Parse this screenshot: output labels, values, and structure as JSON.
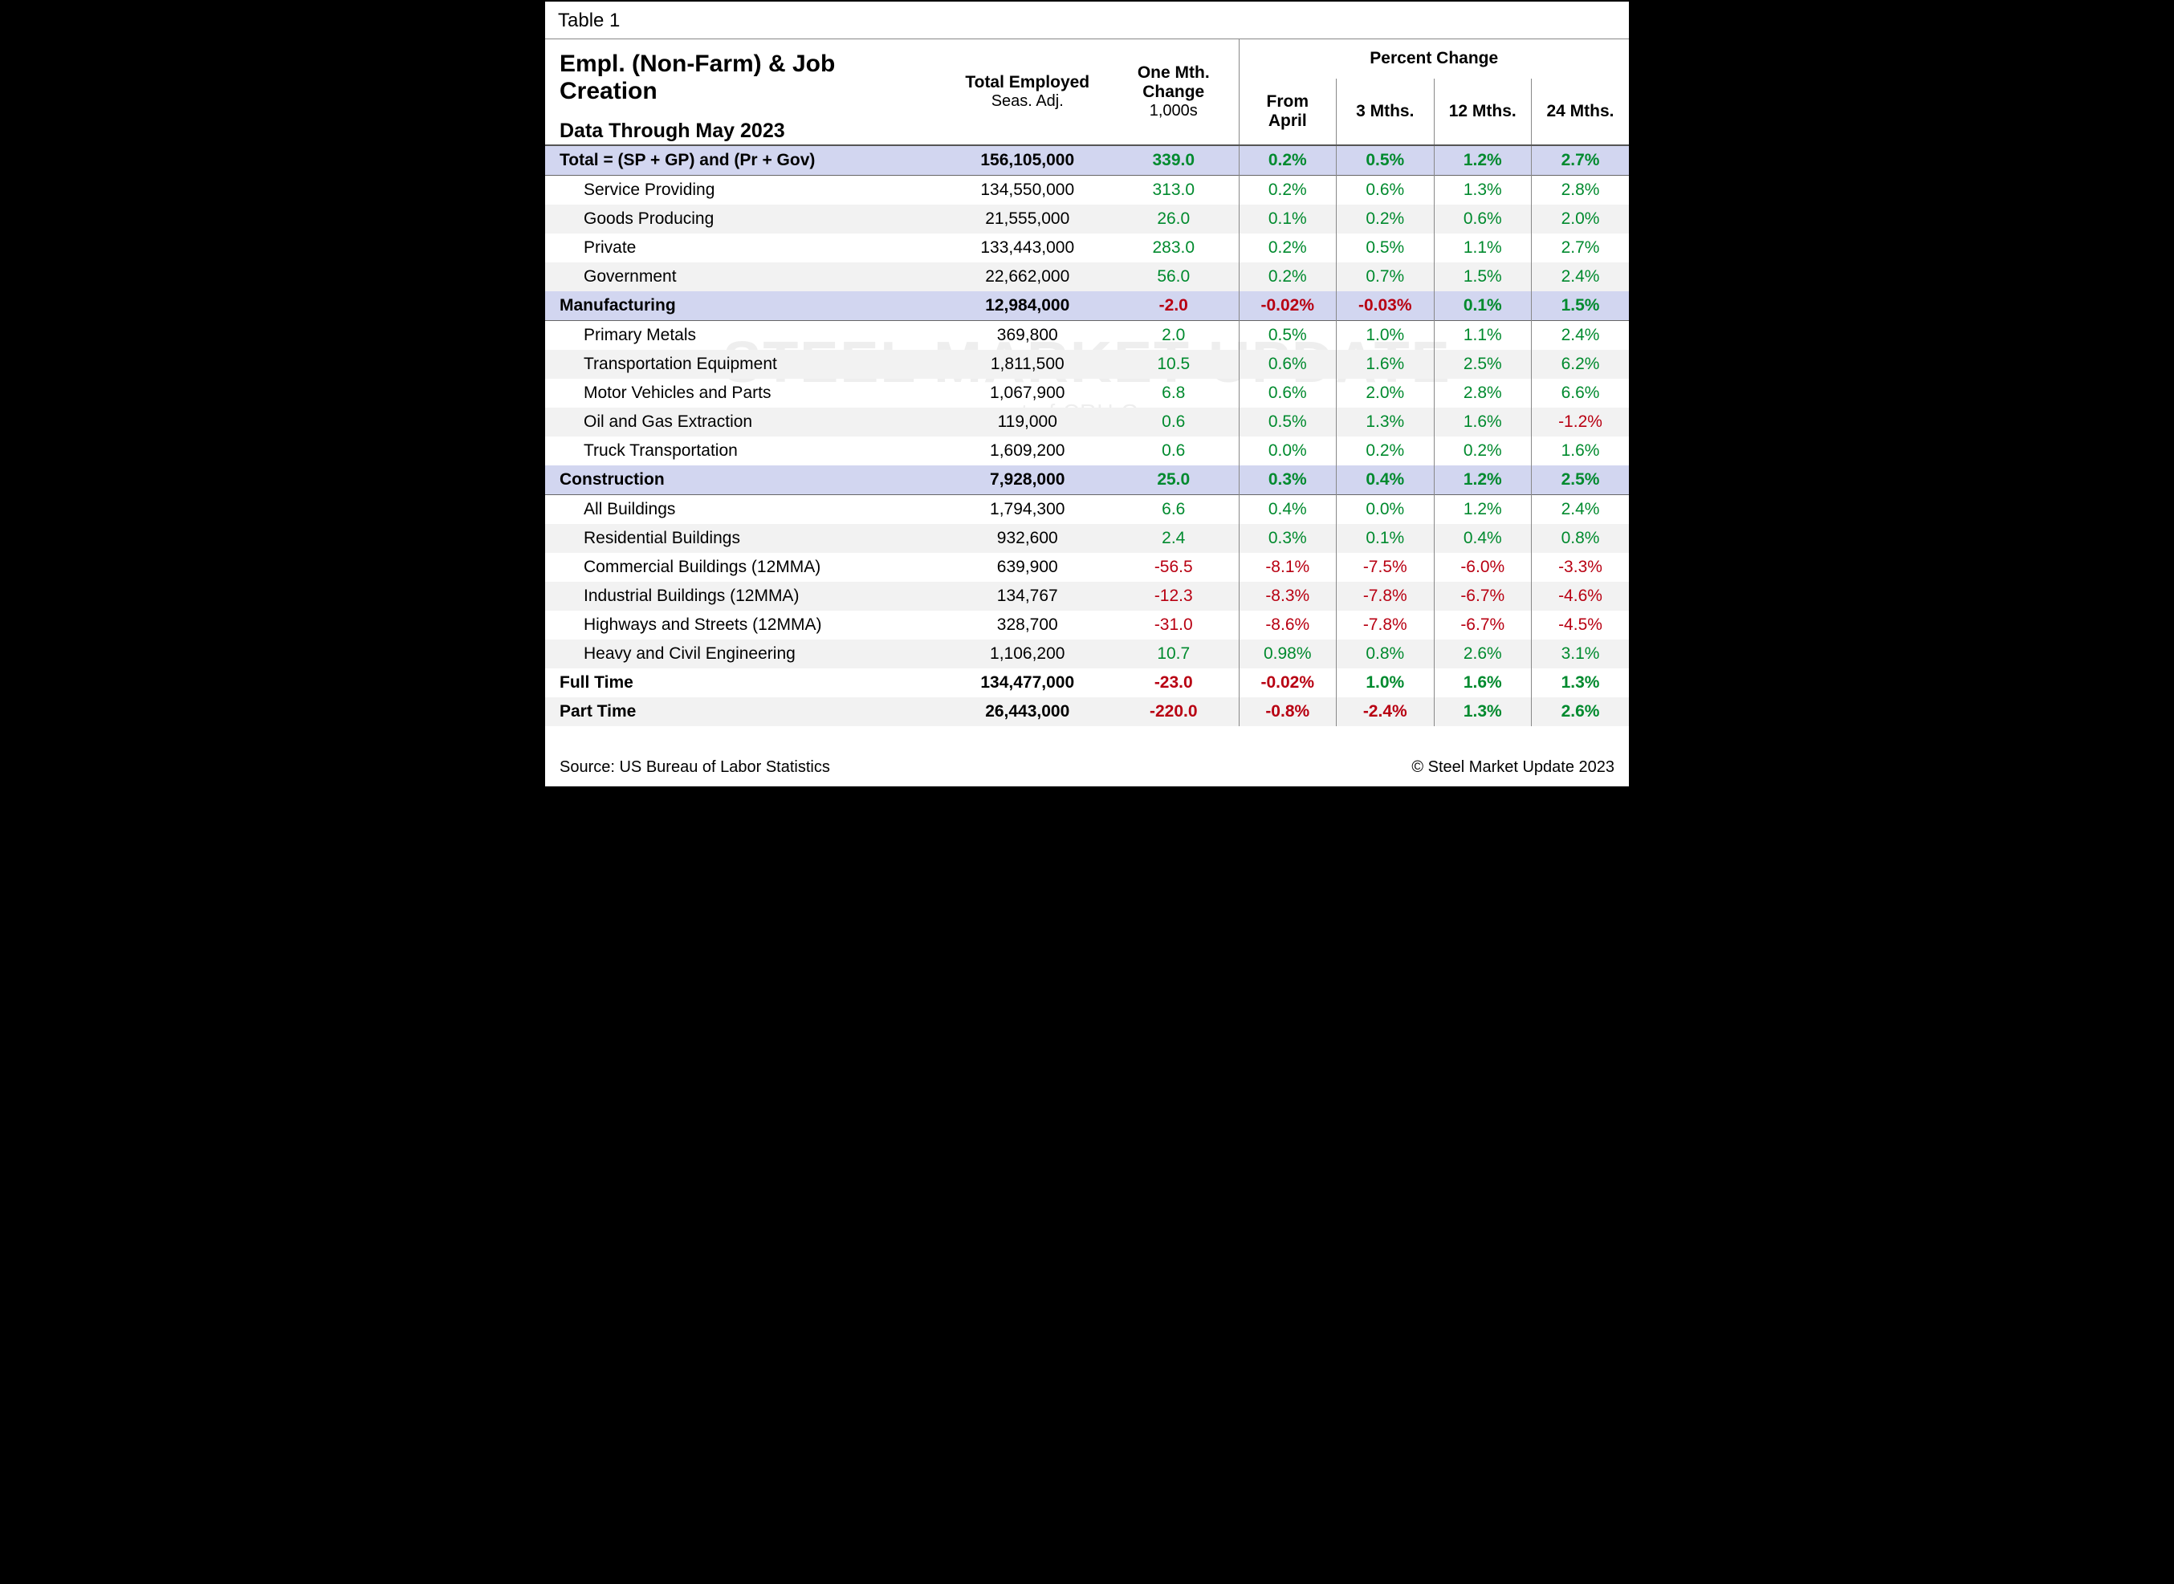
{
  "caption": "Table 1",
  "title": "Empl. (Non-Farm) & Job Creation",
  "subtitle": "Data Through May 2023",
  "watermark_main": "STEEL MARKET UPDATE",
  "watermark_sub": "part of  CRU  Group",
  "headers": {
    "total_employed_top": "Total Employed",
    "total_employed_sub": "Seas. Adj.",
    "one_mth_top": "One Mth. Change",
    "one_mth_sub": "1,000s",
    "pct_change": "Percent Change",
    "from_april": "From April",
    "m3": "3 Mths.",
    "m12": "12 Mths.",
    "m24": "24 Mths."
  },
  "colors": {
    "highlight_bg": "#d2d6f0",
    "alt_row_bg": "#f2f2f2",
    "positive": "#008a2e",
    "negative": "#b80012",
    "border": "#555555",
    "text": "#000000"
  },
  "rows": [
    {
      "kind": "section",
      "label": "Total = (SP + GP) and (Pr + Gov)",
      "total": "156,105,000",
      "chg": "339.0",
      "chg_sign": "pos",
      "p1": "0.2%",
      "p1s": "pos",
      "p3": "0.5%",
      "p3s": "pos",
      "p12": "1.2%",
      "p12s": "pos",
      "p24": "2.7%",
      "p24s": "pos",
      "hl": true,
      "rule": true
    },
    {
      "kind": "sub",
      "label": "Service Providing",
      "total": "134,550,000",
      "chg": "313.0",
      "chg_sign": "pos",
      "p1": "0.2%",
      "p1s": "pos",
      "p3": "0.6%",
      "p3s": "pos",
      "p12": "1.3%",
      "p12s": "pos",
      "p24": "2.8%",
      "p24s": "pos"
    },
    {
      "kind": "sub",
      "label": "Goods Producing",
      "total": "21,555,000",
      "chg": "26.0",
      "chg_sign": "pos",
      "p1": "0.1%",
      "p1s": "pos",
      "p3": "0.2%",
      "p3s": "pos",
      "p12": "0.6%",
      "p12s": "pos",
      "p24": "2.0%",
      "p24s": "pos",
      "alt": true
    },
    {
      "kind": "sub",
      "label": "Private",
      "total": "133,443,000",
      "chg": "283.0",
      "chg_sign": "pos",
      "p1": "0.2%",
      "p1s": "pos",
      "p3": "0.5%",
      "p3s": "pos",
      "p12": "1.1%",
      "p12s": "pos",
      "p24": "2.7%",
      "p24s": "pos"
    },
    {
      "kind": "sub",
      "label": "Government",
      "total": "22,662,000",
      "chg": "56.0",
      "chg_sign": "pos",
      "p1": "0.2%",
      "p1s": "pos",
      "p3": "0.7%",
      "p3s": "pos",
      "p12": "1.5%",
      "p12s": "pos",
      "p24": "2.4%",
      "p24s": "pos",
      "alt": true
    },
    {
      "kind": "section",
      "label": "Manufacturing",
      "total": "12,984,000",
      "chg": "-2.0",
      "chg_sign": "neg",
      "p1": "-0.02%",
      "p1s": "neg",
      "p3": "-0.03%",
      "p3s": "neg",
      "p12": "0.1%",
      "p12s": "pos",
      "p24": "1.5%",
      "p24s": "pos",
      "hl": true,
      "rule": true
    },
    {
      "kind": "sub",
      "label": "Primary Metals",
      "total": "369,800",
      "chg": "2.0",
      "chg_sign": "pos",
      "p1": "0.5%",
      "p1s": "pos",
      "p3": "1.0%",
      "p3s": "pos",
      "p12": "1.1%",
      "p12s": "pos",
      "p24": "2.4%",
      "p24s": "pos"
    },
    {
      "kind": "sub",
      "label": "Transportation Equipment",
      "total": "1,811,500",
      "chg": "10.5",
      "chg_sign": "pos",
      "p1": "0.6%",
      "p1s": "pos",
      "p3": "1.6%",
      "p3s": "pos",
      "p12": "2.5%",
      "p12s": "pos",
      "p24": "6.2%",
      "p24s": "pos",
      "alt": true
    },
    {
      "kind": "sub",
      "label": "Motor Vehicles and Parts",
      "total": "1,067,900",
      "chg": "6.8",
      "chg_sign": "pos",
      "p1": "0.6%",
      "p1s": "pos",
      "p3": "2.0%",
      "p3s": "pos",
      "p12": "2.8%",
      "p12s": "pos",
      "p24": "6.6%",
      "p24s": "pos"
    },
    {
      "kind": "sub",
      "label": "Oil and Gas Extraction",
      "total": "119,000",
      "chg": "0.6",
      "chg_sign": "pos",
      "p1": "0.5%",
      "p1s": "pos",
      "p3": "1.3%",
      "p3s": "pos",
      "p12": "1.6%",
      "p12s": "pos",
      "p24": "-1.2%",
      "p24s": "neg",
      "alt": true
    },
    {
      "kind": "sub",
      "label": "Truck Transportation",
      "total": "1,609,200",
      "chg": "0.6",
      "chg_sign": "pos",
      "p1": "0.0%",
      "p1s": "pos",
      "p3": "0.2%",
      "p3s": "pos",
      "p12": "0.2%",
      "p12s": "pos",
      "p24": "1.6%",
      "p24s": "pos"
    },
    {
      "kind": "section",
      "label": "Construction",
      "total": "7,928,000",
      "chg": "25.0",
      "chg_sign": "pos",
      "p1": "0.3%",
      "p1s": "pos",
      "p3": "0.4%",
      "p3s": "pos",
      "p12": "1.2%",
      "p12s": "pos",
      "p24": "2.5%",
      "p24s": "pos",
      "hl": true,
      "rule": true
    },
    {
      "kind": "sub",
      "label": "All Buildings",
      "total": "1,794,300",
      "chg": "6.6",
      "chg_sign": "pos",
      "p1": "0.4%",
      "p1s": "pos",
      "p3": "0.0%",
      "p3s": "pos",
      "p12": "1.2%",
      "p12s": "pos",
      "p24": "2.4%",
      "p24s": "pos"
    },
    {
      "kind": "sub",
      "label": "Residential Buildings",
      "total": "932,600",
      "chg": "2.4",
      "chg_sign": "pos",
      "p1": "0.3%",
      "p1s": "pos",
      "p3": "0.1%",
      "p3s": "pos",
      "p12": "0.4%",
      "p12s": "pos",
      "p24": "0.8%",
      "p24s": "pos",
      "alt": true
    },
    {
      "kind": "sub",
      "label": "Commercial Buildings (12MMA)",
      "total": "639,900",
      "chg": "-56.5",
      "chg_sign": "neg",
      "p1": "-8.1%",
      "p1s": "neg",
      "p3": "-7.5%",
      "p3s": "neg",
      "p12": "-6.0%",
      "p12s": "neg",
      "p24": "-3.3%",
      "p24s": "neg"
    },
    {
      "kind": "sub",
      "label": "Industrial Buildings (12MMA)",
      "total": "134,767",
      "chg": "-12.3",
      "chg_sign": "neg",
      "p1": "-8.3%",
      "p1s": "neg",
      "p3": "-7.8%",
      "p3s": "neg",
      "p12": "-6.7%",
      "p12s": "neg",
      "p24": "-4.6%",
      "p24s": "neg",
      "alt": true
    },
    {
      "kind": "sub",
      "label": "Highways and Streets (12MMA)",
      "total": "328,700",
      "chg": "-31.0",
      "chg_sign": "neg",
      "p1": "-8.6%",
      "p1s": "neg",
      "p3": "-7.8%",
      "p3s": "neg",
      "p12": "-6.7%",
      "p12s": "neg",
      "p24": "-4.5%",
      "p24s": "neg"
    },
    {
      "kind": "sub",
      "label": "Heavy and Civil Engineering",
      "total": "1,106,200",
      "chg": "10.7",
      "chg_sign": "pos",
      "p1": "0.98%",
      "p1s": "pos",
      "p3": "0.8%",
      "p3s": "pos",
      "p12": "2.6%",
      "p12s": "pos",
      "p24": "3.1%",
      "p24s": "pos",
      "alt": true
    },
    {
      "kind": "section",
      "label": "Full Time",
      "total": "134,477,000",
      "chg": "-23.0",
      "chg_sign": "neg",
      "p1": "-0.02%",
      "p1s": "neg",
      "p3": "1.0%",
      "p3s": "pos",
      "p12": "1.6%",
      "p12s": "pos",
      "p24": "1.3%",
      "p24s": "pos"
    },
    {
      "kind": "section",
      "label": "Part Time",
      "total": "26,443,000",
      "chg": "-220.0",
      "chg_sign": "neg",
      "p1": "-0.8%",
      "p1s": "neg",
      "p3": "-2.4%",
      "p3s": "neg",
      "p12": "1.3%",
      "p12s": "pos",
      "p24": "2.6%",
      "p24s": "pos",
      "alt": true
    }
  ],
  "footer_left": "Source: US Bureau of Labor Statistics",
  "footer_right": "© Steel Market Update 2023"
}
